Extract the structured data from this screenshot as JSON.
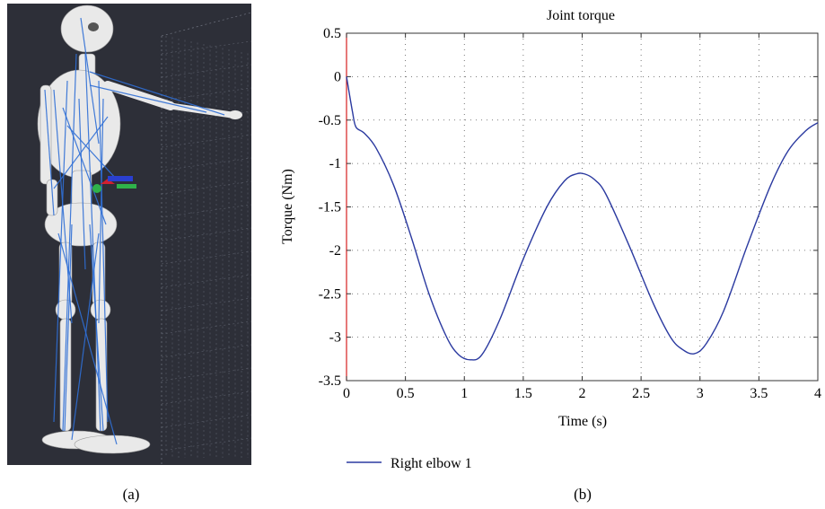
{
  "panel_a": {
    "caption": "(a)",
    "image_description_icon": "musculoskeletal-model-icon",
    "background_color": "#2d2f38",
    "bone_color": "#e9e9e9",
    "muscle_color": "#2f6fd6"
  },
  "panel_b": {
    "caption": "(b)"
  },
  "chart_data": {
    "type": "line",
    "title": "Joint torque",
    "xlabel": "Time (s)",
    "ylabel": "Torque (Nm)",
    "xlim": [
      0,
      4
    ],
    "ylim": [
      -3.5,
      0.5
    ],
    "xticks": [
      0,
      0.5,
      1,
      1.5,
      2,
      2.5,
      3,
      3.5,
      4
    ],
    "yticks": [
      0.5,
      0,
      -0.5,
      -1,
      -1.5,
      -2,
      -2.5,
      -3,
      -3.5
    ],
    "xtick_labels": [
      "0",
      "0.5",
      "1",
      "1.5",
      "2",
      "2.5",
      "3",
      "3.5",
      "4"
    ],
    "ytick_labels": [
      "0.5",
      "0",
      "-0.5",
      "-1",
      "-1.5",
      "-2",
      "-2.5",
      "-3",
      "-3.5"
    ],
    "grid": true,
    "legend_placement": "bottom-left",
    "series": [
      {
        "name": "Right elbow 1",
        "color": "#2b3aa0",
        "x": [
          0,
          0.05,
          0.08,
          0.15,
          0.25,
          0.4,
          0.55,
          0.7,
          0.85,
          0.95,
          1.05,
          1.15,
          1.3,
          1.5,
          1.7,
          1.85,
          1.95,
          2.02,
          2.1,
          2.2,
          2.4,
          2.6,
          2.75,
          2.85,
          2.95,
          3.05,
          3.2,
          3.4,
          3.6,
          3.75,
          3.9,
          4.0
        ],
        "y": [
          0.0,
          -0.4,
          -0.58,
          -0.65,
          -0.82,
          -1.25,
          -1.85,
          -2.5,
          -3.0,
          -3.2,
          -3.26,
          -3.2,
          -2.8,
          -2.1,
          -1.5,
          -1.2,
          -1.12,
          -1.12,
          -1.18,
          -1.35,
          -1.95,
          -2.6,
          -3.0,
          -3.14,
          -3.19,
          -3.08,
          -2.7,
          -1.95,
          -1.25,
          -0.85,
          -0.62,
          -0.53
        ]
      }
    ],
    "x_zero_line_color": "#d62020"
  }
}
